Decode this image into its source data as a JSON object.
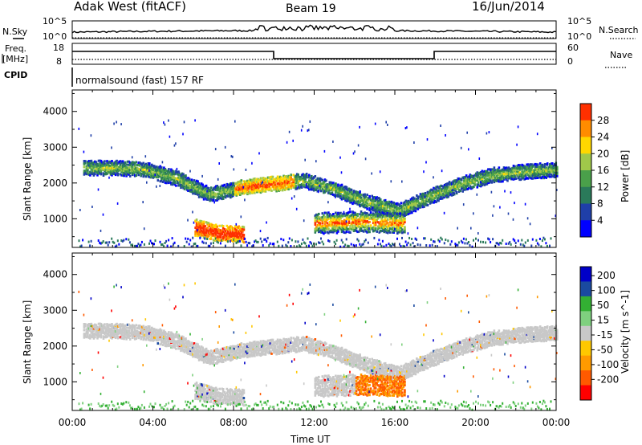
{
  "header": {
    "title": "Adak West (fitACF)",
    "beam": "Beam 19",
    "date": "16/Jun/2014"
  },
  "strips": {
    "nsky_label": "N.Sky",
    "nsky_top": "10^5",
    "nsky_bottom": "10^0",
    "nsearch_label": "N.Search",
    "nsearch_top": "10^5",
    "nsearch_bottom": "10^0",
    "freq_label_line1": "Freq.",
    "freq_label_line2": "[MHz]",
    "freq_top": "18",
    "freq_bottom": "8",
    "nave_label": "Nave",
    "nave_top": "60",
    "nave_bottom": "0",
    "cpid_label": "CPID",
    "cpid_text": "normalsound (fast) 157 RF"
  },
  "colors": {
    "power_scale": [
      "#0000ff",
      "#1f3fa8",
      "#2a7a5a",
      "#4aa04a",
      "#a0c84a",
      "#ffd700",
      "#ff8c00",
      "#ff3000"
    ],
    "velocity_scale": [
      "#ff0000",
      "#ff5a00",
      "#ff9a00",
      "#ffc800",
      "#c8c8c8",
      "#7fd07f",
      "#33b033",
      "#1a4aa0",
      "#0000c8"
    ],
    "scatter_gray": "#c8c8c8"
  },
  "chart_data": [
    {
      "type": "heatmap",
      "name": "power",
      "xlabel": "",
      "ylabel": "Slant Range [km]",
      "x_ticks": [
        "00:00",
        "04:00",
        "08:00",
        "12:00",
        "16:00",
        "20:00",
        "00:00"
      ],
      "y_ticks": [
        "1000",
        "2000",
        "3000",
        "4000"
      ],
      "ylim": [
        200,
        4600
      ],
      "colorbar_label": "Power [dB]",
      "colorbar_ticks": [
        "4",
        "8",
        "12",
        "16",
        "20",
        "24",
        "28"
      ],
      "bands": [
        {
          "t0": 0.5,
          "t1": 24,
          "center_km": [
            2450,
            2450,
            2400,
            2150,
            1700,
            1900,
            2000,
            2100,
            1850,
            1500,
            1250,
            1650,
            2000,
            2250,
            2350,
            2400
          ],
          "width_km": 180
        },
        {
          "t0": 6.0,
          "t1": 8.5,
          "center_km": [
            800,
            620,
            600
          ],
          "width_km": 200
        },
        {
          "t0": 12.0,
          "t1": 16.5,
          "center_km": [
            900,
            950,
            900
          ],
          "width_km": 260
        }
      ]
    },
    {
      "type": "heatmap",
      "name": "velocity",
      "xlabel": "Time UT",
      "ylabel": "Slant Range [km]",
      "x_ticks": [
        "00:00",
        "04:00",
        "08:00",
        "12:00",
        "16:00",
        "20:00",
        "00:00"
      ],
      "y_ticks": [
        "1000",
        "2000",
        "3000",
        "4000"
      ],
      "ylim": [
        200,
        4600
      ],
      "colorbar_label": "Velocity [m s^-1]",
      "colorbar_ticks": [
        "200",
        "100",
        "50",
        "15",
        "-15",
        "-50",
        "-100",
        "-200"
      ]
    }
  ]
}
